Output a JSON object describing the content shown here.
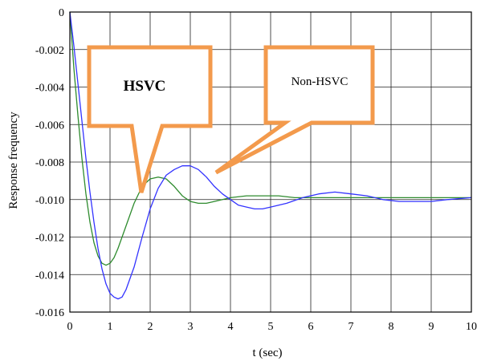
{
  "chart_data": {
    "type": "line",
    "xlabel": "t (sec)",
    "ylabel": "Response frequency",
    "xlim": [
      0,
      10
    ],
    "ylim": [
      -0.016,
      0
    ],
    "xticks": [
      "0",
      "1",
      "2",
      "3",
      "4",
      "5",
      "6",
      "7",
      "8",
      "9",
      "10"
    ],
    "yticks": [
      "0",
      "-0.002",
      "-0.004",
      "-0.006",
      "-0.008",
      "-0.010",
      "-0.012",
      "-0.014",
      "-0.016"
    ],
    "grid": true,
    "series": [
      {
        "name": "HSVC",
        "color": "#2e8b2e",
        "points": [
          [
            0,
            0
          ],
          [
            0.1,
            -0.003
          ],
          [
            0.2,
            -0.0055
          ],
          [
            0.3,
            -0.0078
          ],
          [
            0.4,
            -0.0097
          ],
          [
            0.5,
            -0.0112
          ],
          [
            0.6,
            -0.0123
          ],
          [
            0.7,
            -0.013
          ],
          [
            0.8,
            -0.0134
          ],
          [
            0.9,
            -0.0135
          ],
          [
            1.0,
            -0.0134
          ],
          [
            1.1,
            -0.0131
          ],
          [
            1.2,
            -0.0126
          ],
          [
            1.4,
            -0.0114
          ],
          [
            1.6,
            -0.0102
          ],
          [
            1.8,
            -0.0093
          ],
          [
            2.0,
            -0.0089
          ],
          [
            2.2,
            -0.0088
          ],
          [
            2.4,
            -0.0089
          ],
          [
            2.6,
            -0.0093
          ],
          [
            2.8,
            -0.0098
          ],
          [
            3.0,
            -0.0101
          ],
          [
            3.2,
            -0.0102
          ],
          [
            3.4,
            -0.0102
          ],
          [
            3.6,
            -0.0101
          ],
          [
            3.8,
            -0.01
          ],
          [
            4.0,
            -0.0099
          ],
          [
            4.4,
            -0.0098
          ],
          [
            4.8,
            -0.0098
          ],
          [
            5.2,
            -0.0098
          ],
          [
            5.6,
            -0.0099
          ],
          [
            6.0,
            -0.0099
          ],
          [
            7.0,
            -0.0099
          ],
          [
            8.0,
            -0.0099
          ],
          [
            9.0,
            -0.0099
          ],
          [
            10.0,
            -0.0099
          ]
        ]
      },
      {
        "name": "Non-HSVC",
        "color": "#3333ff",
        "points": [
          [
            0,
            0
          ],
          [
            0.1,
            -0.0018
          ],
          [
            0.2,
            -0.0038
          ],
          [
            0.3,
            -0.0058
          ],
          [
            0.4,
            -0.0078
          ],
          [
            0.5,
            -0.0096
          ],
          [
            0.6,
            -0.0112
          ],
          [
            0.7,
            -0.0126
          ],
          [
            0.8,
            -0.0137
          ],
          [
            0.9,
            -0.0145
          ],
          [
            1.0,
            -0.015
          ],
          [
            1.1,
            -0.0152
          ],
          [
            1.2,
            -0.0153
          ],
          [
            1.3,
            -0.0152
          ],
          [
            1.4,
            -0.0148
          ],
          [
            1.6,
            -0.0136
          ],
          [
            1.8,
            -0.012
          ],
          [
            2.0,
            -0.0105
          ],
          [
            2.2,
            -0.0094
          ],
          [
            2.4,
            -0.0087
          ],
          [
            2.6,
            -0.0084
          ],
          [
            2.8,
            -0.0082
          ],
          [
            3.0,
            -0.0082
          ],
          [
            3.2,
            -0.0084
          ],
          [
            3.4,
            -0.0088
          ],
          [
            3.6,
            -0.0093
          ],
          [
            3.8,
            -0.0097
          ],
          [
            4.0,
            -0.01
          ],
          [
            4.2,
            -0.0103
          ],
          [
            4.4,
            -0.0104
          ],
          [
            4.6,
            -0.0105
          ],
          [
            4.8,
            -0.0105
          ],
          [
            5.0,
            -0.0104
          ],
          [
            5.4,
            -0.0102
          ],
          [
            5.8,
            -0.0099
          ],
          [
            6.2,
            -0.0097
          ],
          [
            6.6,
            -0.0096
          ],
          [
            7.0,
            -0.0097
          ],
          [
            7.4,
            -0.0098
          ],
          [
            7.8,
            -0.01
          ],
          [
            8.2,
            -0.0101
          ],
          [
            8.6,
            -0.0101
          ],
          [
            9.0,
            -0.0101
          ],
          [
            9.4,
            -0.01
          ],
          [
            10.0,
            -0.0099
          ]
        ]
      }
    ],
    "annotations": [
      {
        "text": "HSVC",
        "target": [
          1.8,
          -0.0095
        ]
      },
      {
        "text": "Non-HSVC",
        "target": [
          3.6,
          -0.0086
        ]
      }
    ]
  }
}
